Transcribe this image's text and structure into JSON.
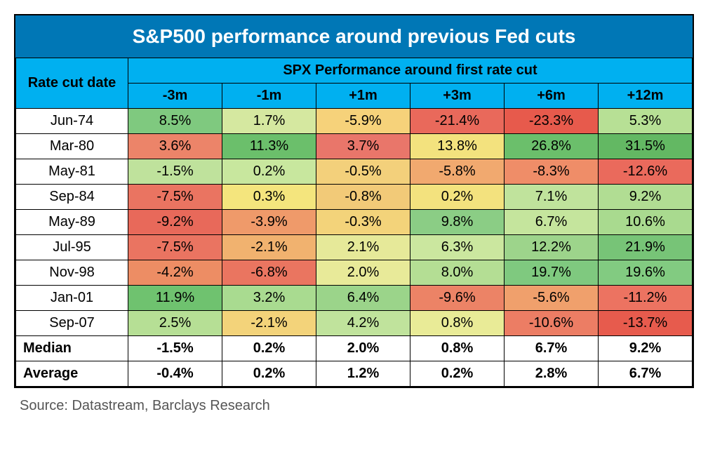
{
  "title": "S&P500 performance around previous Fed cuts",
  "header": {
    "col0": "Rate cut date",
    "group": "SPX Performance around first rate cut",
    "periods": [
      "-3m",
      "-1m",
      "+1m",
      "+3m",
      "+6m",
      "+12m"
    ]
  },
  "colors": {
    "title_bg": "#0077b6",
    "title_fg": "#ffffff",
    "header_bg": "#00b0f0",
    "border": "#000000"
  },
  "heat_palette_note": "cells colored on a red→yellow→green scale, per-column, inferred from image",
  "rows": [
    {
      "date": "Jun-74",
      "cells": [
        {
          "v": "8.5%",
          "c": "#7fc97f"
        },
        {
          "v": "1.7%",
          "c": "#d5e8a0"
        },
        {
          "v": "-5.9%",
          "c": "#f6d27a"
        },
        {
          "v": "-21.4%",
          "c": "#e9695b"
        },
        {
          "v": "-23.3%",
          "c": "#e75a4c"
        },
        {
          "v": "5.3%",
          "c": "#b7e095"
        }
      ]
    },
    {
      "date": "Mar-80",
      "cells": [
        {
          "v": "3.6%",
          "c": "#ec8469"
        },
        {
          "v": "11.3%",
          "c": "#6bbf6b"
        },
        {
          "v": "3.7%",
          "c": "#e9766a"
        },
        {
          "v": "13.8%",
          "c": "#f3e27e"
        },
        {
          "v": "26.8%",
          "c": "#6bbf6b"
        },
        {
          "v": "31.5%",
          "c": "#63b863"
        }
      ]
    },
    {
      "date": "May-81",
      "cells": [
        {
          "v": "-1.5%",
          "c": "#bfe29c"
        },
        {
          "v": "0.2%",
          "c": "#c8e79e"
        },
        {
          "v": "-0.5%",
          "c": "#f3d07b"
        },
        {
          "v": "-5.8%",
          "c": "#f1a96f"
        },
        {
          "v": "-8.3%",
          "c": "#ef8d68"
        },
        {
          "v": "-12.6%",
          "c": "#ea6a5c"
        }
      ]
    },
    {
      "date": "Sep-84",
      "cells": [
        {
          "v": "-7.5%",
          "c": "#ea7461"
        },
        {
          "v": "0.3%",
          "c": "#f4e57d"
        },
        {
          "v": "-0.8%",
          "c": "#f2ca78"
        },
        {
          "v": "0.2%",
          "c": "#f3e27e"
        },
        {
          "v": "7.1%",
          "c": "#c0e39c"
        },
        {
          "v": "9.2%",
          "c": "#b1dd93"
        }
      ]
    },
    {
      "date": "May-89",
      "cells": [
        {
          "v": "-9.2%",
          "c": "#e8695a"
        },
        {
          "v": "-3.9%",
          "c": "#ef9a6a"
        },
        {
          "v": "-0.3%",
          "c": "#f3d37a"
        },
        {
          "v": "9.8%",
          "c": "#8bcd85"
        },
        {
          "v": "6.7%",
          "c": "#c5e59d"
        },
        {
          "v": "10.6%",
          "c": "#a9da8f"
        }
      ]
    },
    {
      "date": "Jul-95",
      "cells": [
        {
          "v": "-7.5%",
          "c": "#ea7461"
        },
        {
          "v": "-2.1%",
          "c": "#f1b26f"
        },
        {
          "v": "2.1%",
          "c": "#e6e999"
        },
        {
          "v": "6.3%",
          "c": "#cbe79f"
        },
        {
          "v": "12.2%",
          "c": "#9dd48b"
        },
        {
          "v": "21.9%",
          "c": "#77c477"
        }
      ]
    },
    {
      "date": "Nov-98",
      "cells": [
        {
          "v": "-4.2%",
          "c": "#ed8d64"
        },
        {
          "v": "-6.8%",
          "c": "#ea7560"
        },
        {
          "v": "2.0%",
          "c": "#e8ea99"
        },
        {
          "v": "8.0%",
          "c": "#b4de94"
        },
        {
          "v": "19.7%",
          "c": "#7fc97f"
        },
        {
          "v": "19.6%",
          "c": "#82cb81"
        }
      ]
    },
    {
      "date": "Jan-01",
      "cells": [
        {
          "v": "11.9%",
          "c": "#6fc26f"
        },
        {
          "v": "3.2%",
          "c": "#a9db90"
        },
        {
          "v": "6.4%",
          "c": "#9bd48a"
        },
        {
          "v": "-9.6%",
          "c": "#ec8366"
        },
        {
          "v": "-5.6%",
          "c": "#f0a06c"
        },
        {
          "v": "-11.2%",
          "c": "#ec7361"
        }
      ]
    },
    {
      "date": "Sep-07",
      "cells": [
        {
          "v": "2.5%",
          "c": "#b6df95"
        },
        {
          "v": "-2.1%",
          "c": "#f3d37a"
        },
        {
          "v": "4.2%",
          "c": "#c0e39c"
        },
        {
          "v": "0.8%",
          "c": "#e9eb97"
        },
        {
          "v": "-10.6%",
          "c": "#ec7d64"
        },
        {
          "v": "-13.7%",
          "c": "#e75b4d"
        }
      ]
    }
  ],
  "summary": [
    {
      "label": "Median",
      "values": [
        "-1.5%",
        "0.2%",
        "2.0%",
        "0.8%",
        "6.7%",
        "9.2%"
      ]
    },
    {
      "label": "Average",
      "values": [
        "-0.4%",
        "0.2%",
        "1.2%",
        "0.2%",
        "2.8%",
        "6.7%"
      ]
    }
  ],
  "source": "Source: Datastream, Barclays Research"
}
